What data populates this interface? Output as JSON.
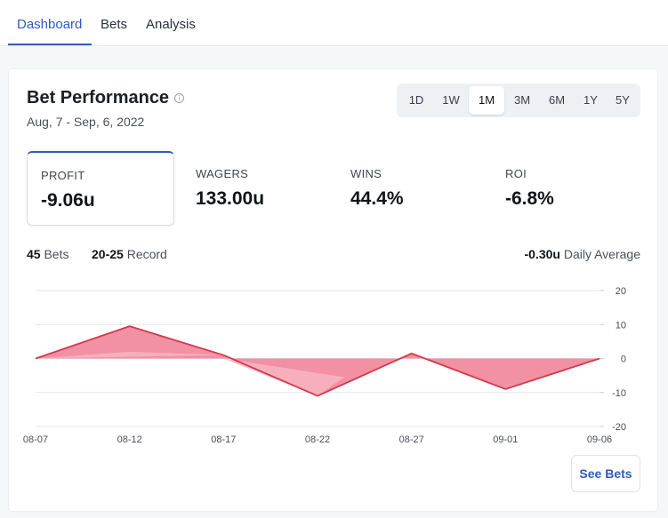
{
  "nav": {
    "tabs": [
      {
        "label": "Dashboard",
        "active": true
      },
      {
        "label": "Bets",
        "active": false
      },
      {
        "label": "Analysis",
        "active": false
      }
    ]
  },
  "card": {
    "title": "Bet Performance",
    "info_icon": "info-icon",
    "date_range": "Aug, 7 - Sep, 6, 2022",
    "ranges": [
      {
        "label": "1D",
        "active": false
      },
      {
        "label": "1W",
        "active": false
      },
      {
        "label": "1M",
        "active": true
      },
      {
        "label": "3M",
        "active": false
      },
      {
        "label": "6M",
        "active": false
      },
      {
        "label": "1Y",
        "active": false
      },
      {
        "label": "5Y",
        "active": false
      }
    ],
    "stats": [
      {
        "label": "PROFIT",
        "value": "-9.06u",
        "selected": true
      },
      {
        "label": "WAGERS",
        "value": "133.00u",
        "selected": false
      },
      {
        "label": "WINS",
        "value": "44.4%",
        "selected": false
      },
      {
        "label": "ROI",
        "value": "-6.8%",
        "selected": false
      }
    ],
    "summary": {
      "bets_count": "45",
      "bets_label": "Bets",
      "record_value": "20-25",
      "record_label": "Record",
      "daily_avg_value": "-0.30u",
      "daily_avg_label": "Daily Average"
    },
    "see_bets_label": "See Bets"
  },
  "colors": {
    "accent": "#2f5cb8",
    "line": "#d13a4a",
    "fill_dark": "#f1849a",
    "fill_light": "#f7b3c1"
  },
  "chart_data": {
    "type": "area",
    "x_ticks": [
      "08-07",
      "08-12",
      "08-17",
      "08-22",
      "08-27",
      "09-01",
      "09-06"
    ],
    "y_ticks": [
      20,
      10,
      0,
      -10,
      -20
    ],
    "ylim": [
      -20,
      20
    ],
    "series": [
      {
        "points": [
          {
            "x": "08-07",
            "y": 0
          },
          {
            "x": "08-12",
            "y": 9.5
          },
          {
            "x": "08-17",
            "y": 1
          },
          {
            "x": "08-22",
            "y": -11
          },
          {
            "x": "08-27",
            "y": 1.5
          },
          {
            "x": "09-01",
            "y": -9
          },
          {
            "x": "09-06",
            "y": 0
          }
        ]
      }
    ]
  }
}
